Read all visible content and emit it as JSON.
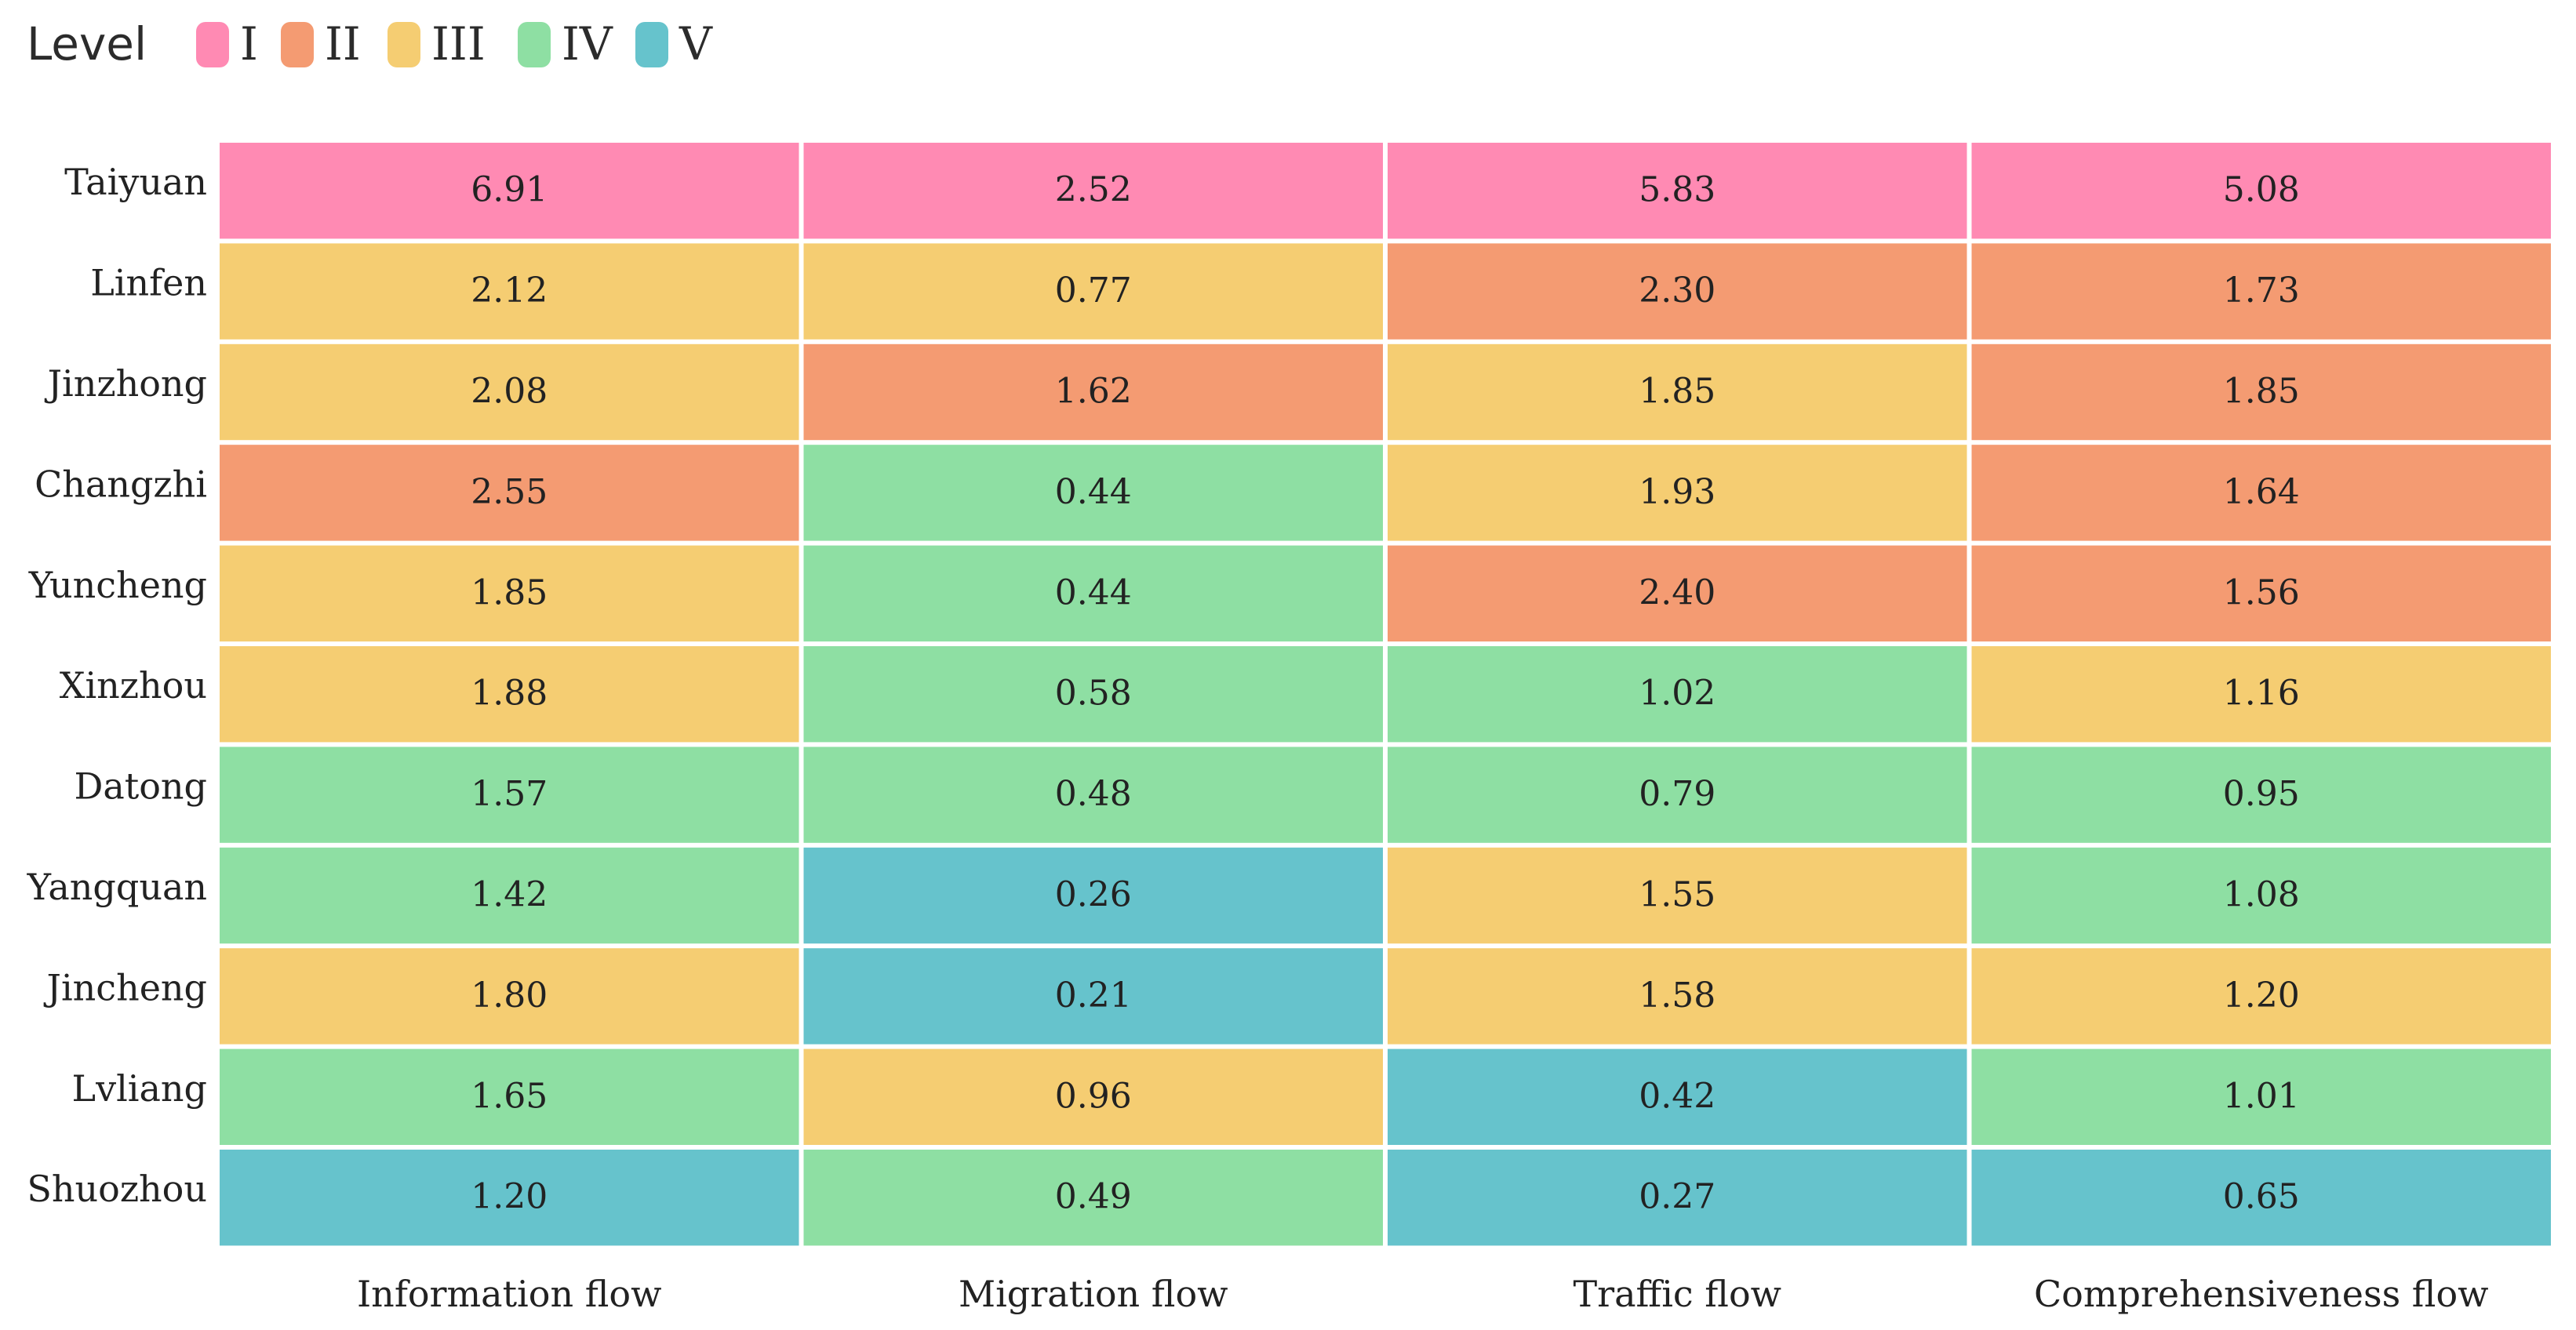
{
  "chart_data": {
    "type": "heatmap",
    "legend": {
      "title": "Level",
      "levels": [
        {
          "label": "I",
          "color": "#FF8AB3"
        },
        {
          "label": "II",
          "color": "#F49B72"
        },
        {
          "label": "III",
          "color": "#F5CD72"
        },
        {
          "label": "IV",
          "color": "#8EDFA3"
        },
        {
          "label": "V",
          "color": "#66C3CC"
        }
      ]
    },
    "rows": [
      "Taiyuan",
      "Linfen",
      "Jinzhong",
      "Changzhi",
      "Yuncheng",
      "Xinzhou",
      "Datong",
      "Yangquan",
      "Jincheng",
      "Lvliang",
      "Shuozhou"
    ],
    "columns": [
      "Information flow",
      "Migration flow",
      "Traffic flow",
      "Comprehensiveness flow"
    ],
    "values": [
      [
        "6.91",
        "2.52",
        "5.83",
        "5.08"
      ],
      [
        "2.12",
        "0.77",
        "2.30",
        "1.73"
      ],
      [
        "2.08",
        "1.62",
        "1.85",
        "1.85"
      ],
      [
        "2.55",
        "0.44",
        "1.93",
        "1.64"
      ],
      [
        "1.85",
        "0.44",
        "2.40",
        "1.56"
      ],
      [
        "1.88",
        "0.58",
        "1.02",
        "1.16"
      ],
      [
        "1.57",
        "0.48",
        "0.79",
        "0.95"
      ],
      [
        "1.42",
        "0.26",
        "1.55",
        "1.08"
      ],
      [
        "1.80",
        "0.21",
        "1.58",
        "1.20"
      ],
      [
        "1.65",
        "0.96",
        "0.42",
        "1.01"
      ],
      [
        "1.20",
        "0.49",
        "0.27",
        "0.65"
      ]
    ],
    "levels": [
      [
        "I",
        "I",
        "I",
        "I"
      ],
      [
        "III",
        "III",
        "II",
        "II"
      ],
      [
        "III",
        "II",
        "III",
        "II"
      ],
      [
        "II",
        "IV",
        "III",
        "II"
      ],
      [
        "III",
        "IV",
        "II",
        "II"
      ],
      [
        "III",
        "IV",
        "IV",
        "III"
      ],
      [
        "IV",
        "IV",
        "IV",
        "IV"
      ],
      [
        "IV",
        "V",
        "III",
        "IV"
      ],
      [
        "III",
        "V",
        "III",
        "III"
      ],
      [
        "IV",
        "III",
        "V",
        "IV"
      ],
      [
        "V",
        "IV",
        "V",
        "V"
      ]
    ]
  }
}
